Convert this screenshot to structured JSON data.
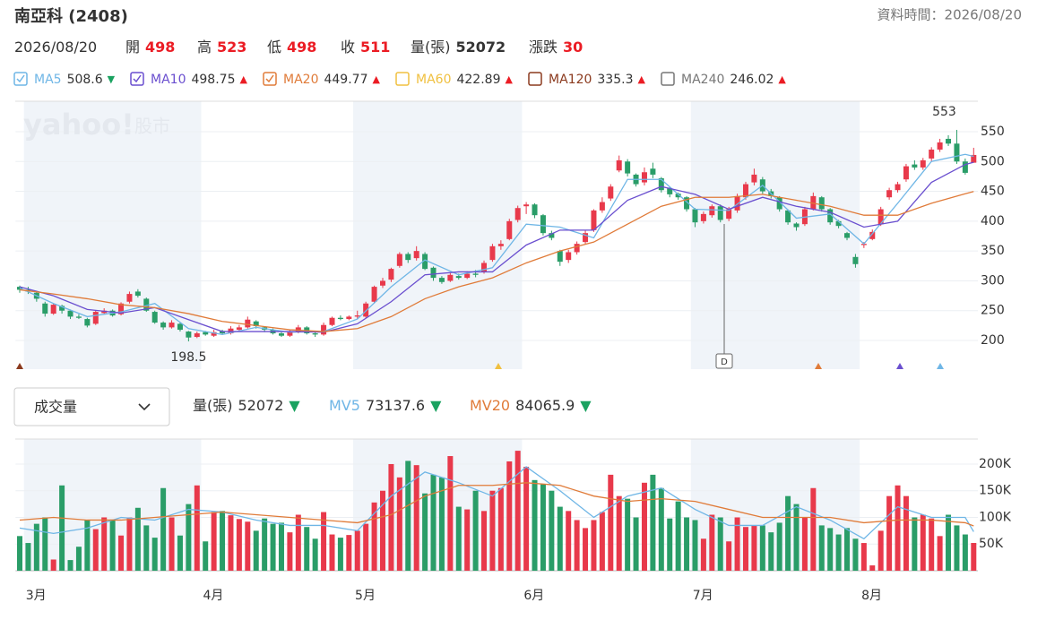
{
  "header": {
    "title": "南亞科 (2408)",
    "updated": "資料時間：2026/08/20",
    "date": "2026/08/20",
    "labels": {
      "open": "開",
      "high": "高",
      "low": "低",
      "close": "收",
      "volume": "量(張)",
      "change": "漲跌"
    },
    "change": 30
  },
  "chart_data": [
    {
      "type": "candlestick",
      "up_color": "#e8394b",
      "down_color": "#2a9d68",
      "ylim": [
        152,
        601
      ],
      "yticks": [
        200,
        250,
        300,
        350,
        400,
        450,
        500,
        550
      ],
      "grid": true,
      "xlim": [
        -0.5,
        113.5
      ],
      "xticks": [
        {
          "value": 1,
          "label": "3月"
        },
        {
          "value": 22,
          "label": "4月"
        },
        {
          "value": 40,
          "label": "5月"
        },
        {
          "value": 60,
          "label": "6月"
        },
        {
          "value": 80,
          "label": "7月"
        },
        {
          "value": 100,
          "label": "8月"
        }
      ],
      "watermark": [
        "yahoo!",
        "股市"
      ],
      "marker": "D",
      "candles": [
        [
          290,
          292,
          280,
          285
        ],
        [
          285,
          290,
          278,
          282
        ],
        [
          280,
          282,
          265,
          270
        ],
        [
          262,
          265,
          240,
          245
        ],
        [
          245,
          262,
          243,
          260
        ],
        [
          258,
          260,
          245,
          250
        ],
        [
          250,
          252,
          236,
          240
        ],
        [
          240,
          244,
          236,
          238
        ],
        [
          236,
          238,
          222,
          225
        ],
        [
          228,
          250,
          226,
          248
        ],
        [
          246,
          254,
          244,
          250
        ],
        [
          250,
          252,
          240,
          242
        ],
        [
          244,
          264,
          242,
          262
        ],
        [
          265,
          282,
          262,
          278
        ],
        [
          282,
          286,
          272,
          275
        ],
        [
          270,
          272,
          248,
          250
        ],
        [
          248,
          250,
          228,
          230
        ],
        [
          230,
          232,
          218,
          222
        ],
        [
          222,
          234,
          220,
          230
        ],
        [
          228,
          230,
          215,
          218
        ],
        [
          215,
          216,
          198.5,
          205
        ],
        [
          206,
          215,
          204,
          212
        ],
        [
          214,
          216,
          208,
          210
        ],
        [
          208,
          218,
          206,
          214
        ],
        [
          216,
          218,
          210,
          212
        ],
        [
          212,
          224,
          210,
          220
        ],
        [
          218,
          226,
          216,
          222
        ],
        [
          222,
          240,
          220,
          235
        ],
        [
          232,
          234,
          220,
          224
        ],
        [
          222,
          224,
          214,
          218
        ],
        [
          218,
          220,
          210,
          212
        ],
        [
          212,
          214,
          206,
          208
        ],
        [
          208,
          218,
          206,
          215
        ],
        [
          214,
          226,
          212,
          222
        ],
        [
          222,
          224,
          210,
          212
        ],
        [
          212,
          214,
          206,
          210
        ],
        [
          210,
          230,
          208,
          226
        ],
        [
          226,
          240,
          224,
          238
        ],
        [
          238,
          242,
          234,
          236
        ],
        [
          236,
          242,
          234,
          240
        ],
        [
          240,
          250,
          236,
          242
        ],
        [
          240,
          265,
          238,
          262
        ],
        [
          265,
          292,
          262,
          290
        ],
        [
          292,
          305,
          288,
          300
        ],
        [
          302,
          322,
          298,
          320
        ],
        [
          325,
          348,
          322,
          345
        ],
        [
          345,
          348,
          330,
          335
        ],
        [
          338,
          358,
          334,
          350
        ],
        [
          345,
          348,
          318,
          320
        ],
        [
          322,
          324,
          300,
          305
        ],
        [
          305,
          308,
          295,
          298
        ],
        [
          300,
          314,
          298,
          310
        ],
        [
          308,
          312,
          302,
          305
        ],
        [
          305,
          316,
          303,
          312
        ],
        [
          312,
          318,
          306,
          310
        ],
        [
          315,
          334,
          312,
          330
        ],
        [
          335,
          362,
          332,
          358
        ],
        [
          358,
          368,
          352,
          362
        ],
        [
          370,
          404,
          368,
          400
        ],
        [
          402,
          426,
          398,
          422
        ],
        [
          425,
          432,
          412,
          428
        ],
        [
          428,
          430,
          405,
          410
        ],
        [
          410,
          412,
          376,
          380
        ],
        [
          380,
          384,
          368,
          372
        ],
        [
          350,
          352,
          325,
          332
        ],
        [
          335,
          352,
          330,
          348
        ],
        [
          348,
          366,
          344,
          362
        ],
        [
          365,
          384,
          362,
          380
        ],
        [
          385,
          420,
          382,
          418
        ],
        [
          418,
          440,
          414,
          432
        ],
        [
          438,
          462,
          434,
          458
        ],
        [
          485,
          510,
          482,
          502
        ],
        [
          500,
          504,
          475,
          480
        ],
        [
          478,
          480,
          458,
          462
        ],
        [
          465,
          490,
          460,
          482
        ],
        [
          488,
          498,
          472,
          478
        ],
        [
          472,
          474,
          448,
          452
        ],
        [
          455,
          458,
          440,
          445
        ],
        [
          446,
          448,
          436,
          440
        ],
        [
          440,
          442,
          416,
          420
        ],
        [
          420,
          422,
          390,
          398
        ],
        [
          400,
          416,
          396,
          412
        ],
        [
          410,
          428,
          406,
          425
        ],
        [
          425,
          428,
          398,
          402
        ],
        [
          404,
          424,
          400,
          420
        ],
        [
          418,
          446,
          414,
          442
        ],
        [
          440,
          466,
          436,
          462
        ],
        [
          465,
          488,
          460,
          478
        ],
        [
          470,
          474,
          446,
          450
        ],
        [
          450,
          454,
          438,
          442
        ],
        [
          440,
          442,
          416,
          420
        ],
        [
          418,
          420,
          394,
          398
        ],
        [
          396,
          398,
          384,
          390
        ],
        [
          395,
          424,
          392,
          420
        ],
        [
          420,
          448,
          418,
          442
        ],
        [
          440,
          442,
          416,
          420
        ],
        [
          420,
          422,
          394,
          398
        ],
        [
          400,
          402,
          388,
          392
        ],
        [
          380,
          382,
          368,
          372
        ],
        [
          340,
          345,
          322,
          328
        ],
        [
          360,
          365,
          355,
          362
        ],
        [
          370,
          386,
          368,
          382
        ],
        [
          395,
          424,
          392,
          420
        ],
        [
          440,
          456,
          436,
          452
        ],
        [
          452,
          466,
          448,
          462
        ],
        [
          470,
          496,
          466,
          492
        ],
        [
          495,
          502,
          486,
          490
        ],
        [
          490,
          506,
          486,
          502
        ],
        [
          505,
          524,
          500,
          520
        ],
        [
          520,
          538,
          516,
          532
        ],
        [
          538,
          544,
          526,
          530
        ],
        [
          530,
          553,
          496,
          500
        ],
        [
          500,
          505,
          478,
          481
        ],
        [
          498,
          523,
          498,
          511
        ]
      ],
      "series": [
        {
          "name": "MA5",
          "color": "#6fb6e6",
          "checked": true,
          "trend": {
            "label": "▼",
            "color": "#1aa260"
          },
          "x": [
            0,
            4,
            8,
            12,
            16,
            20,
            24,
            28,
            32,
            36,
            40,
            44,
            48,
            52,
            56,
            60,
            64,
            68,
            72,
            76,
            80,
            84,
            88,
            92,
            96,
            100,
            104,
            108,
            112,
            113
          ],
          "values": [
            288,
            262,
            240,
            248,
            262,
            220,
            210,
            222,
            214,
            215,
            236,
            290,
            335,
            310,
            322,
            395,
            390,
            372,
            470,
            470,
            420,
            418,
            460,
            405,
            412,
            362,
            430,
            500,
            512,
            508.6
          ]
        },
        {
          "name": "MA10",
          "color": "#6a4fcf",
          "checked": true,
          "trend": {
            "label": "▲",
            "color": "#eb1c24"
          },
          "x": [
            0,
            4,
            8,
            12,
            16,
            20,
            24,
            28,
            32,
            36,
            40,
            44,
            48,
            52,
            56,
            60,
            64,
            68,
            72,
            76,
            80,
            84,
            88,
            92,
            96,
            100,
            104,
            108,
            112,
            113
          ],
          "values": [
            290,
            275,
            252,
            246,
            255,
            235,
            215,
            215,
            215,
            214,
            228,
            265,
            310,
            315,
            315,
            360,
            385,
            385,
            435,
            458,
            445,
            420,
            440,
            425,
            415,
            390,
            400,
            465,
            495,
            498.75
          ]
        },
        {
          "name": "MA20",
          "color": "#e07b39",
          "checked": true,
          "trend": {
            "label": "▲",
            "color": "#eb1c24"
          },
          "x": [
            0,
            4,
            8,
            12,
            16,
            20,
            24,
            28,
            32,
            36,
            40,
            44,
            48,
            52,
            56,
            60,
            64,
            68,
            72,
            76,
            80,
            84,
            88,
            92,
            96,
            100,
            104,
            108,
            112,
            113
          ],
          "values": [
            285,
            278,
            270,
            260,
            255,
            245,
            232,
            225,
            218,
            215,
            220,
            240,
            270,
            290,
            305,
            330,
            350,
            365,
            395,
            425,
            440,
            440,
            445,
            435,
            425,
            410,
            410,
            430,
            446,
            449.77
          ]
        },
        {
          "name": "MA60",
          "color": "#f0c040",
          "checked": false,
          "trend": {
            "label": "▲",
            "color": "#eb1c24"
          },
          "latest": 422.89
        },
        {
          "name": "MA120",
          "color": "#8b3a1e",
          "checked": false,
          "trend": {
            "label": "▲",
            "color": "#eb1c24"
          },
          "latest": 335.3
        },
        {
          "name": "MA240",
          "color": "#777777",
          "checked": false,
          "trend": {
            "label": "▲",
            "color": "#eb1c24"
          },
          "latest": 246.02
        }
      ]
    },
    {
      "type": "bar",
      "selector": "成交量",
      "volume_trend": {
        "label": "▼",
        "color": "#1aa260"
      },
      "ylim": [
        0,
        247000
      ],
      "yticks": [
        {
          "value": 50000,
          "label": "50K"
        },
        {
          "value": 100000,
          "label": "100K"
        },
        {
          "value": 150000,
          "label": "150K"
        },
        {
          "value": 200000,
          "label": "200K"
        }
      ],
      "values": [
        65000,
        52000,
        88000,
        100000,
        21000,
        160000,
        20000,
        45000,
        95000,
        78000,
        100000,
        96000,
        66000,
        100000,
        118000,
        85000,
        62000,
        155000,
        100000,
        66000,
        125000,
        160000,
        55000,
        110000,
        112000,
        104000,
        97000,
        92000,
        75000,
        98000,
        88000,
        90000,
        72000,
        105000,
        82000,
        60000,
        110000,
        68000,
        62000,
        67000,
        75000,
        88000,
        128000,
        150000,
        200000,
        175000,
        206000,
        198000,
        145000,
        180000,
        175000,
        215000,
        120000,
        115000,
        150000,
        112000,
        150000,
        155000,
        205000,
        225000,
        195000,
        170000,
        162000,
        150000,
        120000,
        112000,
        95000,
        80000,
        95000,
        110000,
        180000,
        140000,
        135000,
        100000,
        165000,
        180000,
        155000,
        98000,
        130000,
        100000,
        95000,
        60000,
        105000,
        100000,
        55000,
        100000,
        82000,
        85000,
        85000,
        72000,
        90000,
        140000,
        125000,
        100000,
        155000,
        85000,
        80000,
        68000,
        80000,
        60000,
        52000,
        10000,
        75000,
        140000,
        160000,
        140000,
        100000,
        105000,
        98000,
        65000,
        105000,
        85000,
        68000,
        52072
      ],
      "series": [
        {
          "name": "MV5",
          "color": "#6fb6e6",
          "trend": {
            "label": "▼",
            "color": "#1aa260"
          },
          "x": [
            0,
            4,
            8,
            12,
            16,
            20,
            24,
            28,
            32,
            36,
            40,
            44,
            48,
            52,
            56,
            60,
            64,
            68,
            72,
            76,
            80,
            84,
            88,
            92,
            96,
            100,
            104,
            108,
            112,
            113
          ],
          "values": [
            80000,
            70000,
            80000,
            100000,
            95000,
            115000,
            110000,
            95000,
            85000,
            85000,
            75000,
            140000,
            185000,
            165000,
            140000,
            195000,
            150000,
            100000,
            140000,
            155000,
            115000,
            85000,
            85000,
            120000,
            95000,
            60000,
            120000,
            100000,
            100000,
            73137.6
          ]
        },
        {
          "name": "MV20",
          "color": "#e07b39",
          "trend": {
            "label": "▼",
            "color": "#1aa260"
          },
          "x": [
            0,
            4,
            8,
            12,
            16,
            20,
            24,
            28,
            32,
            36,
            40,
            44,
            48,
            52,
            56,
            60,
            64,
            68,
            72,
            76,
            80,
            84,
            88,
            92,
            96,
            100,
            104,
            108,
            112,
            113
          ],
          "values": [
            95000,
            100000,
            95000,
            95000,
            100000,
            105000,
            110000,
            105000,
            100000,
            95000,
            90000,
            105000,
            140000,
            160000,
            160000,
            165000,
            160000,
            140000,
            130000,
            135000,
            130000,
            115000,
            100000,
            100000,
            100000,
            90000,
            95000,
            95000,
            90000,
            84065.9
          ]
        }
      ]
    }
  ]
}
